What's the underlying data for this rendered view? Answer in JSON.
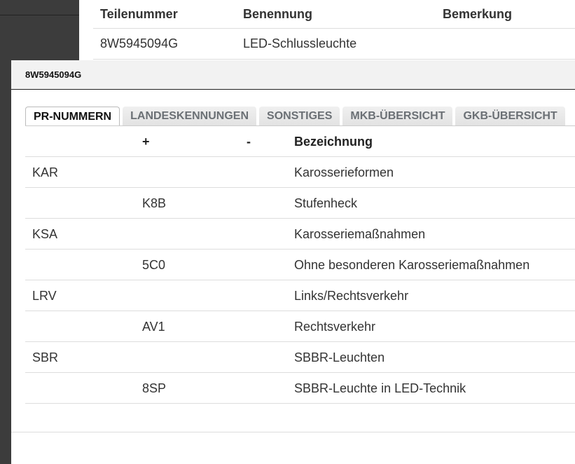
{
  "background_table": {
    "headers": [
      "Teilenummer",
      "Benennung",
      "Bemerkung"
    ],
    "row": [
      "8W5945094G",
      "LED-Schlussleuchte",
      ""
    ]
  },
  "dialog": {
    "title": "8W5945094G",
    "tabs": [
      {
        "label": "PR-NUMMERN",
        "active": true
      },
      {
        "label": "LANDESKENNUNGEN"
      },
      {
        "label": "SONSTIGES"
      },
      {
        "label": "MKB-ÜBERSICHT"
      },
      {
        "label": "GKB-ÜBERSICHT"
      }
    ],
    "table": {
      "headers": [
        "",
        "+",
        "-",
        "Bezeichnung"
      ],
      "rows": [
        [
          "KAR",
          "",
          "",
          "Karosserieformen"
        ],
        [
          "",
          "K8B",
          "",
          "Stufenheck"
        ],
        [
          "KSA",
          "",
          "",
          "Karosseriemaßnahmen"
        ],
        [
          "",
          "5C0",
          "",
          "Ohne besonderen Karosseriemaßnahmen"
        ],
        [
          "LRV",
          "",
          "",
          "Links/Rechtsverkehr"
        ],
        [
          "",
          "AV1",
          "",
          "Rechtsverkehr"
        ],
        [
          "SBR",
          "",
          "",
          "SBBR-Leuchten"
        ],
        [
          "",
          "8SP",
          "",
          "SBBR-Leuchte in LED-Technik"
        ]
      ]
    }
  }
}
